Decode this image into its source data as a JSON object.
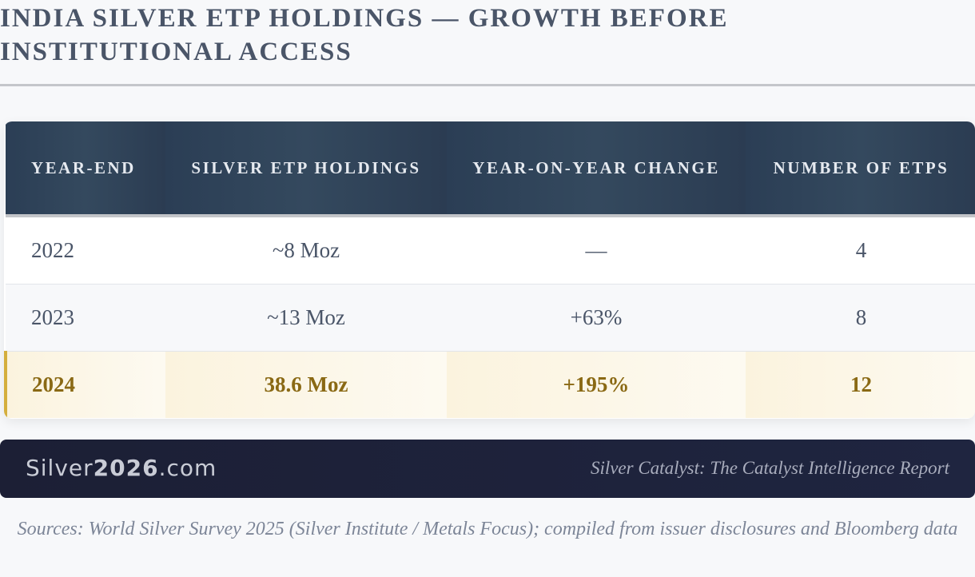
{
  "header": {
    "title": "INDIA SILVER ETP HOLDINGS — GROWTH BEFORE INSTITUTIONAL ACCESS"
  },
  "table": {
    "columns": [
      "YEAR-END",
      "SILVER ETP HOLDINGS",
      "YEAR-ON-YEAR CHANGE",
      "NUMBER OF ETPS"
    ],
    "rows": [
      [
        "2022",
        "~8 Moz",
        "—",
        "4"
      ],
      [
        "2023",
        "~13 Moz",
        "+63%",
        "8"
      ],
      [
        "2024",
        "38.6 Moz",
        "+195%",
        "12"
      ]
    ]
  },
  "footer": {
    "brand": [
      "Silver",
      "2026",
      ".com"
    ],
    "tagline": "Silver Catalyst: The Catalyst Intelligence Report"
  },
  "source": "Sources: World Silver Survey 2025 (Silver Institute / Metals Focus); compiled from issuer disclosures and Bloomberg data"
}
